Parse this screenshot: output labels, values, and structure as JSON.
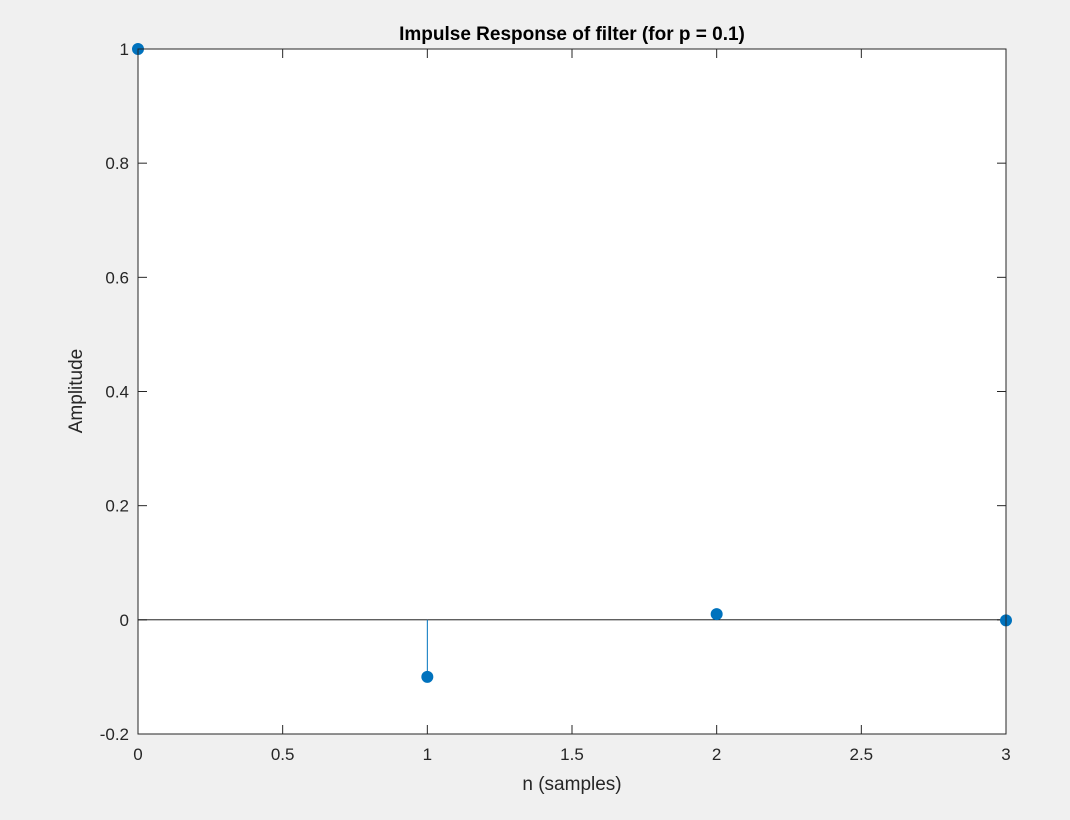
{
  "chart_data": {
    "type": "stem",
    "title": "Impulse Response of filter (for p = 0.1)",
    "xlabel": "n (samples)",
    "ylabel": "Amplitude",
    "x": [
      0,
      1,
      2,
      3
    ],
    "values": [
      1,
      -0.1,
      0.01,
      -0.001
    ],
    "xlim": [
      0,
      3
    ],
    "ylim": [
      -0.2,
      1
    ],
    "xticks": [
      0,
      0.5,
      1,
      1.5,
      2,
      2.5,
      3
    ],
    "xtick_labels": [
      "0",
      "0.5",
      "1",
      "1.5",
      "2",
      "2.5",
      "3"
    ],
    "yticks": [
      -0.2,
      0,
      0.2,
      0.4,
      0.6,
      0.8,
      1
    ],
    "ytick_labels": [
      "-0.2",
      "0",
      "0.2",
      "0.4",
      "0.6",
      "0.8",
      "1"
    ],
    "grid": false,
    "baseline": 0,
    "series_color": "#0072bd",
    "axis_color": "#262626",
    "background_color": "#ffffff",
    "figure_color": "#f0f0f0"
  }
}
